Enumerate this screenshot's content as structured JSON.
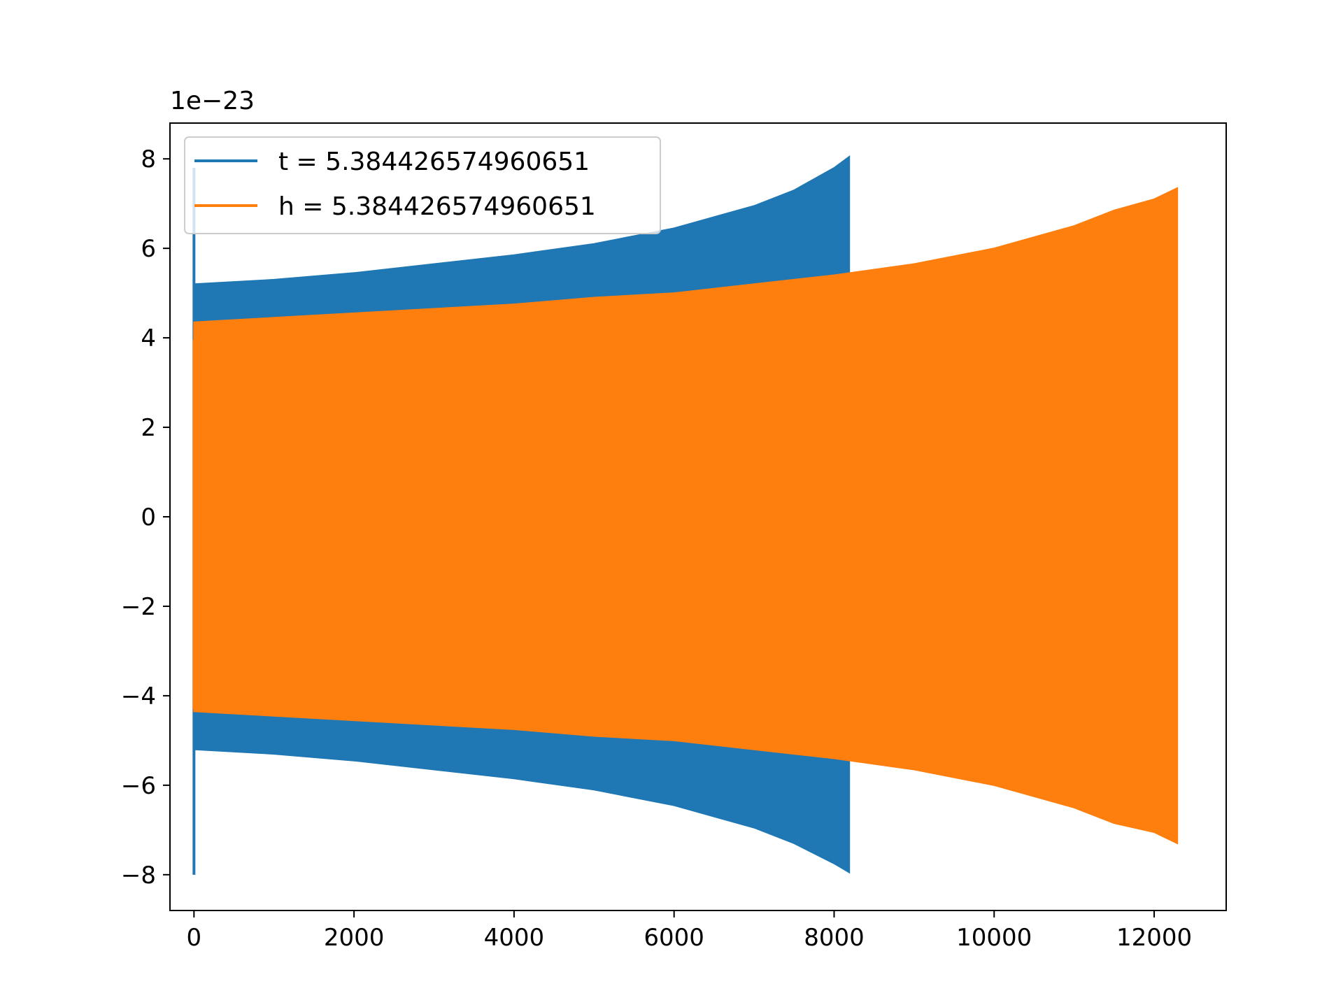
{
  "chart_data": {
    "type": "line",
    "title": "",
    "xlabel": "",
    "ylabel": "",
    "y_offset_label": "1e−23",
    "xlim": [
      -300,
      12900
    ],
    "ylim": [
      -8.8,
      8.8
    ],
    "x_ticks": [
      0,
      2000,
      4000,
      6000,
      8000,
      10000,
      12000
    ],
    "x_tick_labels": [
      "0",
      "2000",
      "4000",
      "6000",
      "8000",
      "10000",
      "12000"
    ],
    "y_ticks": [
      -8,
      -6,
      -4,
      -2,
      0,
      2,
      4,
      6,
      8
    ],
    "y_tick_labels": [
      "−8",
      "−6",
      "−4",
      "−2",
      "0",
      "2",
      "4",
      "6",
      "8"
    ],
    "grid": false,
    "legend_position": "top-left",
    "series": [
      {
        "name": "t = 5.384426574960651",
        "color": "#1f77b4",
        "style": "dense oscillation (filled envelope)",
        "spike": {
          "x": 0,
          "ymax": 7.8,
          "ymin": -8.0
        },
        "envelope": {
          "x": [
            0,
            1000,
            2000,
            3000,
            4000,
            5000,
            6000,
            7000,
            7500,
            8000,
            8190
          ],
          "upper": [
            5.2,
            5.3,
            5.45,
            5.65,
            5.85,
            6.1,
            6.45,
            6.95,
            7.3,
            7.8,
            8.05
          ],
          "lower": [
            -5.2,
            -5.3,
            -5.45,
            -5.65,
            -5.85,
            -6.1,
            -6.45,
            -6.95,
            -7.3,
            -7.75,
            -7.95
          ]
        }
      },
      {
        "name": "h = 5.384426574960651",
        "color": "#ff7f0e",
        "style": "dense oscillation (filled envelope)",
        "spike": {
          "x": 0,
          "ymax": 3.95,
          "ymin": -4.3
        },
        "envelope": {
          "x": [
            0,
            1000,
            2000,
            3000,
            4000,
            5000,
            6000,
            7000,
            8000,
            9000,
            10000,
            11000,
            11500,
            12000,
            12290
          ],
          "upper": [
            4.35,
            4.45,
            4.55,
            4.65,
            4.75,
            4.9,
            5.0,
            5.2,
            5.4,
            5.65,
            6.0,
            6.5,
            6.85,
            7.1,
            7.35
          ],
          "lower": [
            -4.35,
            -4.45,
            -4.55,
            -4.65,
            -4.75,
            -4.9,
            -5.0,
            -5.2,
            -5.4,
            -5.65,
            -6.0,
            -6.5,
            -6.85,
            -7.05,
            -7.3
          ]
        }
      }
    ]
  }
}
